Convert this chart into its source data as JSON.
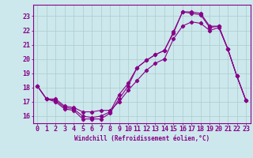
{
  "xlabel": "Windchill (Refroidissement éolien,°C)",
  "background_color": "#cce8ec",
  "grid_color": "#aacccc",
  "line_color": "#880088",
  "x_ticks": [
    0,
    1,
    2,
    3,
    4,
    5,
    6,
    7,
    8,
    9,
    10,
    11,
    12,
    13,
    14,
    15,
    16,
    17,
    18,
    19,
    20,
    21,
    22,
    23
  ],
  "ylim": [
    15.5,
    23.8
  ],
  "xlim": [
    -0.5,
    23.5
  ],
  "line1": [
    18.1,
    17.2,
    17.0,
    16.5,
    16.4,
    15.8,
    15.8,
    15.8,
    16.2,
    17.2,
    18.1,
    19.4,
    19.9,
    20.3,
    20.6,
    21.8,
    23.3,
    23.3,
    23.2,
    22.3,
    22.3,
    20.7,
    18.8,
    17.1
  ],
  "line2": [
    18.1,
    17.2,
    17.1,
    16.6,
    16.5,
    16.0,
    15.9,
    16.0,
    16.3,
    17.5,
    18.3,
    19.4,
    19.9,
    20.3,
    20.6,
    21.9,
    23.3,
    23.2,
    23.1,
    22.2,
    22.3,
    20.7,
    18.8,
    17.1
  ],
  "line3": [
    18.1,
    17.2,
    17.2,
    16.7,
    16.6,
    16.3,
    16.3,
    16.4,
    16.4,
    17.0,
    17.8,
    18.5,
    19.2,
    19.7,
    20.0,
    21.4,
    22.3,
    22.6,
    22.5,
    22.0,
    22.2,
    20.7,
    18.8,
    17.1
  ],
  "y_ticks": [
    16,
    17,
    18,
    19,
    20,
    21,
    22,
    23
  ],
  "tick_fontsize": 6,
  "xlabel_fontsize": 5.5,
  "linewidth": 0.8,
  "markersize": 2.2
}
